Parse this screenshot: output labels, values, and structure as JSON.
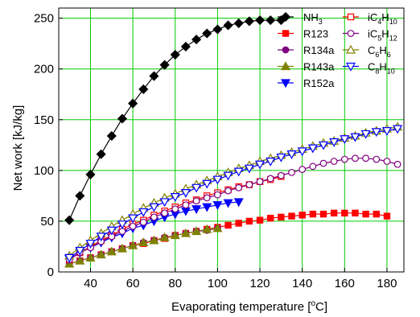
{
  "chart_data": {
    "type": "scatter",
    "xlabel": "Evaporating temperature [",
    "xlabel_unit_sup": "o",
    "xlabel_unit_end": "C]",
    "ylabel": "Net work [kJ/kg]",
    "xlim": [
      25,
      188
    ],
    "ylim": [
      0,
      260
    ],
    "xticks": [
      40,
      60,
      80,
      100,
      120,
      140,
      160,
      180
    ],
    "yticks": [
      0,
      50,
      100,
      150,
      200,
      250
    ],
    "grid": true,
    "grid_color": "#00cc00",
    "legend_position": "top-right",
    "series": [
      {
        "name": "NH3",
        "name_base": "NH",
        "name_subs": [
          "3"
        ],
        "color": "#000000",
        "marker": "diamond",
        "filled": true,
        "x": [
          30,
          35,
          40,
          45,
          50,
          55,
          60,
          65,
          70,
          75,
          80,
          85,
          90,
          95,
          100,
          105,
          110,
          115,
          120,
          125,
          130
        ],
        "y": [
          51,
          75,
          96,
          116,
          134,
          151,
          166,
          180,
          193,
          204,
          214,
          222,
          229,
          235,
          239,
          243,
          245,
          247,
          248,
          248,
          248
        ]
      },
      {
        "name": "R123",
        "color": "#ff0000",
        "marker": "square",
        "filled": true,
        "x": [
          30,
          35,
          40,
          45,
          50,
          55,
          60,
          65,
          70,
          75,
          80,
          85,
          90,
          95,
          100,
          105,
          110,
          115,
          120,
          125,
          130,
          135,
          140,
          145,
          150,
          155,
          160,
          165,
          170,
          175,
          180
        ],
        "y": [
          8,
          11,
          14,
          17,
          20,
          23,
          26,
          28,
          31,
          33,
          36,
          38,
          40,
          42,
          44,
          46,
          48,
          50,
          51,
          53,
          54,
          55,
          56,
          57,
          57,
          58,
          58,
          58,
          57,
          57,
          55
        ]
      },
      {
        "name": "R134a",
        "color": "#800080",
        "marker": "circle",
        "filled": true,
        "x": [
          30,
          35,
          40,
          45,
          50,
          55,
          60,
          65,
          70,
          75,
          80,
          85,
          90,
          95,
          100
        ],
        "y": [
          8,
          11,
          14,
          17,
          20,
          23,
          26,
          29,
          31,
          34,
          36,
          38,
          40,
          41,
          43
        ]
      },
      {
        "name": "R143a",
        "color": "#808000",
        "marker": "triangle-up",
        "filled": true,
        "x": [
          30,
          35,
          40,
          45,
          50,
          55,
          60,
          65,
          70,
          75,
          80,
          85,
          90,
          95,
          100
        ],
        "y": [
          8,
          11,
          14,
          17,
          20,
          23,
          26,
          29,
          31,
          34,
          36,
          38,
          40,
          42,
          43
        ]
      },
      {
        "name": "R152a",
        "color": "#0000ff",
        "marker": "triangle-down",
        "filled": true,
        "x": [
          30,
          35,
          40,
          45,
          50,
          55,
          60,
          65,
          70,
          75,
          80,
          85,
          90,
          95,
          100,
          105,
          110
        ],
        "y": [
          13,
          19,
          24,
          29,
          34,
          38,
          43,
          46,
          50,
          54,
          57,
          60,
          62,
          64,
          66,
          68,
          69
        ]
      },
      {
        "name": "iC4H10",
        "name_base": "iC",
        "name_subs": [
          "4",
          "10"
        ],
        "name_mid": "H",
        "color": "#ff0000",
        "marker": "square",
        "filled": false,
        "x": [
          30,
          35,
          40,
          45,
          50,
          55,
          60,
          65,
          70,
          75,
          80,
          85,
          90,
          95,
          100,
          105,
          110,
          115,
          120,
          125,
          130
        ],
        "y": [
          12,
          19,
          25,
          31,
          36,
          42,
          47,
          51,
          56,
          60,
          64,
          68,
          71,
          75,
          78,
          81,
          84,
          86,
          89,
          91,
          94
        ]
      },
      {
        "name": "iC5H12",
        "name_base": "iC",
        "name_subs": [
          "5",
          "12"
        ],
        "name_mid": "H",
        "color": "#800080",
        "marker": "circle",
        "filled": false,
        "x": [
          30,
          35,
          40,
          45,
          50,
          55,
          60,
          65,
          70,
          75,
          80,
          85,
          90,
          95,
          100,
          105,
          110,
          115,
          120,
          125,
          130,
          135,
          140,
          145,
          150,
          155,
          160,
          165,
          170,
          175,
          180,
          185
        ],
        "y": [
          12,
          19,
          24,
          30,
          35,
          40,
          45,
          49,
          54,
          58,
          62,
          66,
          70,
          73,
          76,
          80,
          83,
          86,
          89,
          92,
          95,
          98,
          101,
          104,
          107,
          109,
          111,
          112,
          112,
          111,
          109,
          106
        ]
      },
      {
        "name": "C6H6",
        "name_base": "C",
        "name_subs": [
          "6",
          "6"
        ],
        "name_mid": "H",
        "color": "#808000",
        "marker": "triangle-up",
        "filled": false,
        "x": [
          30,
          35,
          40,
          45,
          50,
          55,
          60,
          65,
          70,
          75,
          80,
          85,
          90,
          95,
          100,
          105,
          110,
          115,
          120,
          125,
          130,
          135,
          140,
          145,
          150,
          155,
          160,
          165,
          170,
          175,
          180,
          185
        ],
        "y": [
          16,
          24,
          31,
          38,
          45,
          51,
          57,
          63,
          68,
          73,
          77,
          82,
          86,
          90,
          94,
          98,
          102,
          105,
          109,
          112,
          115,
          118,
          121,
          124,
          127,
          129,
          132,
          134,
          137,
          139,
          141,
          143
        ]
      },
      {
        "name": "C8H10",
        "name_base": "C",
        "name_subs": [
          "8",
          "10"
        ],
        "name_mid": "H",
        "color": "#0000ff",
        "marker": "triangle-down",
        "filled": false,
        "x": [
          30,
          35,
          40,
          45,
          50,
          55,
          60,
          65,
          70,
          75,
          80,
          85,
          90,
          95,
          100,
          105,
          110,
          115,
          120,
          125,
          130,
          135,
          140,
          145,
          150,
          155,
          160,
          165,
          170,
          175,
          180,
          185
        ],
        "y": [
          14,
          21,
          28,
          35,
          41,
          47,
          53,
          59,
          64,
          69,
          74,
          78,
          83,
          87,
          91,
          95,
          99,
          102,
          106,
          109,
          113,
          116,
          119,
          122,
          125,
          128,
          131,
          133,
          136,
          138,
          139,
          141
        ]
      }
    ]
  }
}
